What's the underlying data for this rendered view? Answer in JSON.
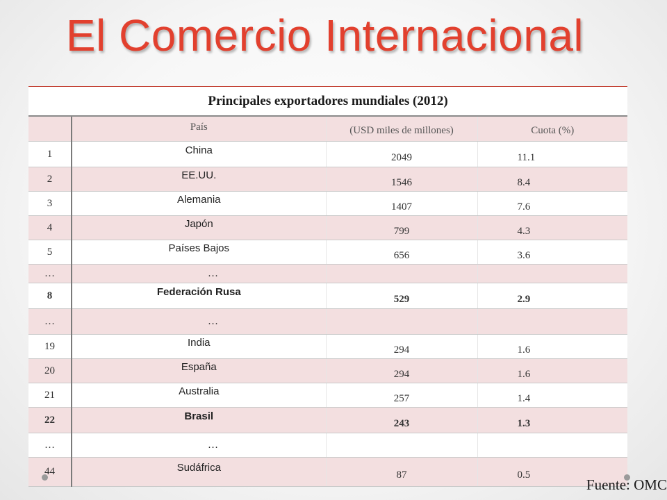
{
  "slide": {
    "title": "El Comercio Internacional",
    "source": "Fuente: OMC"
  },
  "table": {
    "caption": "Principales exportadores mundiales (2012)",
    "headers": [
      "",
      "País",
      "(USD miles de millones)",
      "Cuota (%)"
    ],
    "rows": [
      {
        "rank": "1",
        "country": "China",
        "value": "2049",
        "share": "11.1",
        "bold": false
      },
      {
        "rank": "2",
        "country": "EE.UU.",
        "value": "1546",
        "share": "8.4",
        "bold": false
      },
      {
        "rank": "3",
        "country": "Alemania",
        "value": "1407",
        "share": "7.6",
        "bold": false
      },
      {
        "rank": "4",
        "country": "Japón",
        "value": "799",
        "share": "4.3",
        "bold": false
      },
      {
        "rank": "5",
        "country": "Países Bajos",
        "value": "656",
        "share": "3.6",
        "bold": false
      },
      {
        "rank": "…",
        "country": "…",
        "value": "",
        "share": "",
        "bold": false
      },
      {
        "rank": "8",
        "country": "Federación Rusa",
        "value": "529",
        "share": "2.9",
        "bold": true
      },
      {
        "rank": "…",
        "country": "…",
        "value": "",
        "share": "",
        "bold": false
      },
      {
        "rank": "19",
        "country": "India",
        "value": "294",
        "share": "1.6",
        "bold": false
      },
      {
        "rank": "20",
        "country": "España",
        "value": "294",
        "share": "1.6",
        "bold": false
      },
      {
        "rank": "21",
        "country": "Australia",
        "value": "257",
        "share": "1.4",
        "bold": false
      },
      {
        "rank": "22",
        "country": "Brasil",
        "value": "243",
        "share": "1.3",
        "bold": true
      },
      {
        "rank": "…",
        "country": "…",
        "value": "",
        "share": "",
        "bold": false
      },
      {
        "rank": "44",
        "country": "Sudáfrica",
        "value": "87",
        "share": "0.5",
        "bold": false
      }
    ]
  },
  "colors": {
    "title": "#e2402e",
    "row_shade": "#f3dfe0"
  }
}
